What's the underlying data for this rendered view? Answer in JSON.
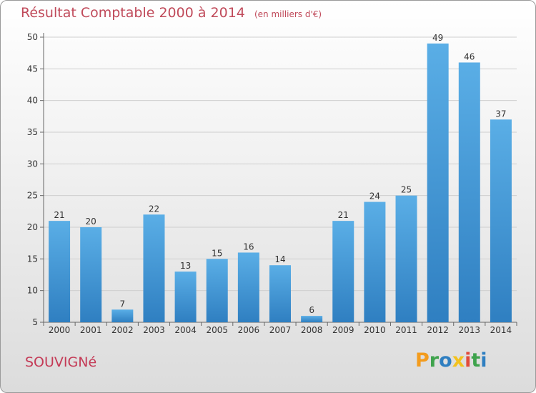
{
  "chart_data": {
    "type": "bar",
    "title": "Résultat Comptable 2000 à 2014",
    "subtitle": "(en milliers d'€)",
    "categories": [
      "2000",
      "2001",
      "2002",
      "2003",
      "2004",
      "2005",
      "2006",
      "2007",
      "2008",
      "2009",
      "2010",
      "2011",
      "2012",
      "2013",
      "2014"
    ],
    "values": [
      21,
      20,
      7,
      22,
      13,
      15,
      16,
      14,
      6,
      21,
      24,
      25,
      49,
      46,
      37
    ],
    "ylim": [
      5,
      50
    ],
    "yticks": [
      "5",
      "10",
      "15",
      "20",
      "25",
      "30",
      "35",
      "40",
      "45",
      "50"
    ],
    "grid": true,
    "xlabel": "",
    "ylabel": ""
  },
  "colors": {
    "bar_top": "#5aaee6",
    "bar_bottom": "#2f7fc1",
    "title": "#c04a5a"
  },
  "footer": {
    "place": "SOUVIGNé",
    "brand": "Proxiti"
  }
}
